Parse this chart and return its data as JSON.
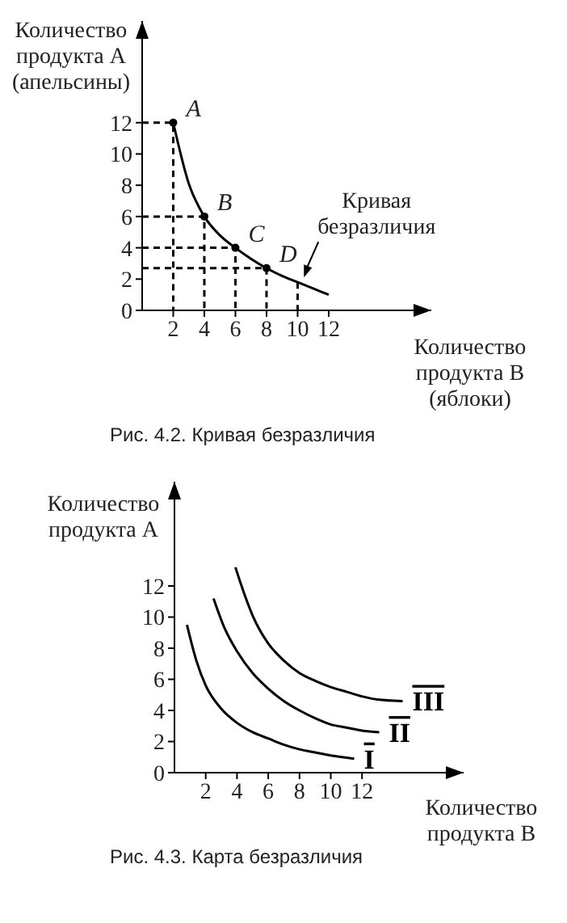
{
  "chart_data": [
    {
      "type": "line",
      "title": "Рис. 4.2. Кривая безразличия",
      "xlabel": "Количество продукта B (яблоки)",
      "ylabel": "Количество продукта A (апельсины)",
      "xlim": [
        0,
        18.6
      ],
      "ylim": [
        0,
        18.5
      ],
      "xticks": [
        2,
        4,
        6,
        8,
        10,
        12
      ],
      "yticks": [
        0,
        2,
        4,
        6,
        8,
        10,
        12
      ],
      "series": [
        {
          "color": "#000000",
          "marker": "none",
          "line_style": "solid",
          "x": [
            2,
            3,
            4,
            5,
            6,
            7,
            8,
            9,
            10,
            11,
            12
          ],
          "values": [
            12,
            8.1,
            6,
            4.8,
            4,
            3.3,
            2.7,
            2.2,
            1.8,
            1.4,
            1
          ]
        },
        {
          "type": "scatter",
          "color": "#000000",
          "marker": "circle",
          "x": [
            2,
            4,
            6,
            8
          ],
          "values": [
            12,
            6,
            4,
            2.7
          ]
        },
        {
          "type": "line",
          "color": "#000000",
          "marker": "none",
          "line_style": "dashed",
          "x": [
            0,
            2,
            2
          ],
          "values": [
            12,
            12,
            0
          ]
        },
        {
          "type": "line",
          "color": "#000000",
          "marker": "none",
          "line_style": "dashed",
          "x": [
            0,
            4,
            4
          ],
          "values": [
            6,
            6,
            0
          ]
        },
        {
          "type": "line",
          "color": "#000000",
          "marker": "none",
          "line_style": "dashed",
          "x": [
            0,
            6,
            6
          ],
          "values": [
            4,
            4,
            0
          ]
        },
        {
          "type": "line",
          "color": "#000000",
          "marker": "none",
          "line_style": "dashed",
          "x": [
            0,
            8,
            8
          ],
          "values": [
            2.7,
            2.7,
            0
          ]
        },
        {
          "type": "line",
          "color": "#000000",
          "marker": "none",
          "line_style": "dashed",
          "x": [
            10,
            10
          ],
          "values": [
            1.8,
            0
          ]
        }
      ],
      "annotations": [
        {
          "text": "A",
          "x": 2,
          "y": 12
        },
        {
          "text": "B",
          "x": 4,
          "y": 6
        },
        {
          "text": "C",
          "x": 6,
          "y": 4
        },
        {
          "text": "D",
          "x": 8,
          "y": 2.7
        },
        {
          "text": "Кривая безразличия",
          "x": 10.3,
          "y": 1.9
        }
      ]
    },
    {
      "type": "line",
      "title": "Рис. 4.3. Карта безразличия",
      "xlabel": "Количество продукта B",
      "ylabel": "Количество продукта A",
      "xlim": [
        0,
        18.5
      ],
      "ylim": [
        0,
        18.7
      ],
      "xticks": [
        2,
        4,
        6,
        8,
        10,
        12
      ],
      "yticks": [
        0,
        2,
        4,
        6,
        8,
        10,
        12
      ],
      "series": [
        {
          "name": "I",
          "color": "#000000",
          "marker": "none",
          "line_style": "solid",
          "x": [
            0.8,
            1.4,
            2,
            3,
            4,
            5,
            6,
            7,
            8,
            9,
            10,
            11.5
          ],
          "values": [
            9.5,
            7.2,
            5.6,
            4.1,
            3.2,
            2.6,
            2.2,
            1.8,
            1.5,
            1.3,
            1.1,
            0.9
          ]
        },
        {
          "name": "II",
          "color": "#000000",
          "marker": "none",
          "line_style": "solid",
          "x": [
            2.5,
            3.2,
            4,
            5,
            6,
            7,
            8,
            9,
            10,
            11,
            12,
            13.1
          ],
          "values": [
            11.2,
            9.3,
            7.8,
            6.4,
            5.4,
            4.6,
            4,
            3.5,
            3.1,
            2.9,
            2.7,
            2.6
          ]
        },
        {
          "name": "III",
          "color": "#000000",
          "marker": "none",
          "line_style": "solid",
          "x": [
            3.9,
            4.5,
            5,
            6,
            7,
            8,
            9,
            10,
            11,
            12,
            13,
            14.6
          ],
          "values": [
            13.2,
            11.4,
            10.1,
            8.3,
            7.2,
            6.4,
            5.9,
            5.5,
            5.2,
            4.9,
            4.7,
            4.6
          ]
        }
      ]
    }
  ]
}
